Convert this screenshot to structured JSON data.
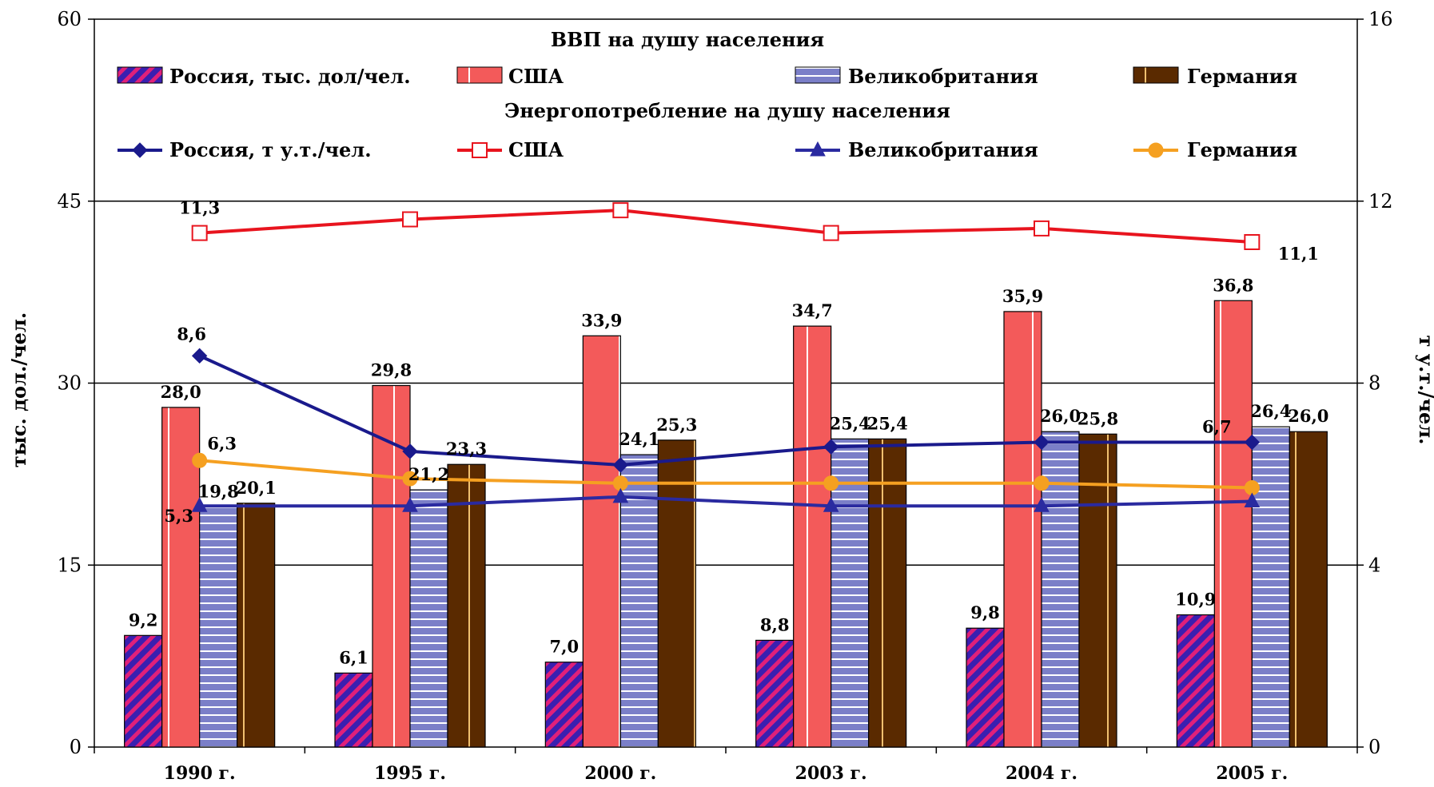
{
  "chart_data": {
    "type": "bar",
    "categories": [
      "1990 г.",
      "1995 г.",
      "2000 г.",
      "2003 г.",
      "2004 г.",
      "2005 г."
    ],
    "ylabel_left": "тыс. дол./чел.",
    "ylabel_right": "т у.т./чел.",
    "ylim_left": [
      0,
      60
    ],
    "ylim_right": [
      0,
      16
    ],
    "yticks_left": [
      "0",
      "15",
      "30",
      "45",
      "60"
    ],
    "yticks_right": [
      "0",
      "4",
      "8",
      "12",
      "16"
    ],
    "grid": true,
    "legend_placement": "top",
    "legend_title_bars": "ВВП на душу населения",
    "legend_title_lines": "Энергопотребление на душу населения",
    "bar_series": [
      {
        "name": "Россия, тыс. дол/чел.",
        "values": [
          9.2,
          6.1,
          7.0,
          8.8,
          9.8,
          10.9
        ],
        "labels": [
          "9,2",
          "6,1",
          "7,0",
          "8,8",
          "9,8",
          "10,9"
        ],
        "color": "#3a1fb0",
        "stripe": "#e0207a",
        "pattern": "diag"
      },
      {
        "name": "США",
        "values": [
          28.0,
          29.8,
          33.9,
          34.7,
          35.9,
          36.8
        ],
        "labels": [
          "28,0",
          "29,8",
          "33,9",
          "34,7",
          "35,9",
          "36,8"
        ],
        "color": "#f35a5a",
        "stripe": "#ffffff",
        "pattern": "vline"
      },
      {
        "name": "Великобритания",
        "values": [
          19.8,
          21.2,
          24.1,
          25.4,
          26.0,
          26.4
        ],
        "labels": [
          "19,8",
          "21,2",
          "24,1",
          "25,4",
          "26,0",
          "26,4"
        ],
        "color": "#7b7fc8",
        "stripe": "#ffffff",
        "pattern": "hline"
      },
      {
        "name": "Германия",
        "values": [
          20.1,
          23.3,
          25.3,
          25.4,
          25.8,
          26.0
        ],
        "labels": [
          "20,1",
          "23,3",
          "25,3",
          "25,4",
          "25,8",
          "26,0"
        ],
        "color": "#5a2a00",
        "stripe": "#f0c070",
        "pattern": "vline"
      }
    ],
    "line_series": [
      {
        "name": "Россия, т у.т./чел.",
        "values": [
          8.6,
          6.5,
          6.2,
          6.6,
          6.7,
          6.7
        ],
        "labels": [
          "8,6",
          "",
          "",
          "",
          "",
          "6,7"
        ],
        "color": "#1a1a8c",
        "marker": "diamond"
      },
      {
        "name": "США",
        "values": [
          11.3,
          11.6,
          11.8,
          11.3,
          11.4,
          11.1
        ],
        "labels": [
          "11,3",
          "",
          "",
          "",
          "",
          "11,1"
        ],
        "color": "#e8141e",
        "marker": "square-open"
      },
      {
        "name": "Великобритания",
        "values": [
          5.3,
          5.3,
          5.5,
          5.3,
          5.3,
          5.4
        ],
        "labels": [
          "5,3",
          "",
          "",
          "",
          "",
          ""
        ],
        "color": "#2a2aa0",
        "marker": "triangle"
      },
      {
        "name": "Германия",
        "values": [
          6.3,
          5.9,
          5.8,
          5.8,
          5.8,
          5.7
        ],
        "labels": [
          "6,3",
          "",
          "",
          "",
          "",
          ""
        ],
        "color": "#f5a021",
        "marker": "circle"
      }
    ]
  }
}
